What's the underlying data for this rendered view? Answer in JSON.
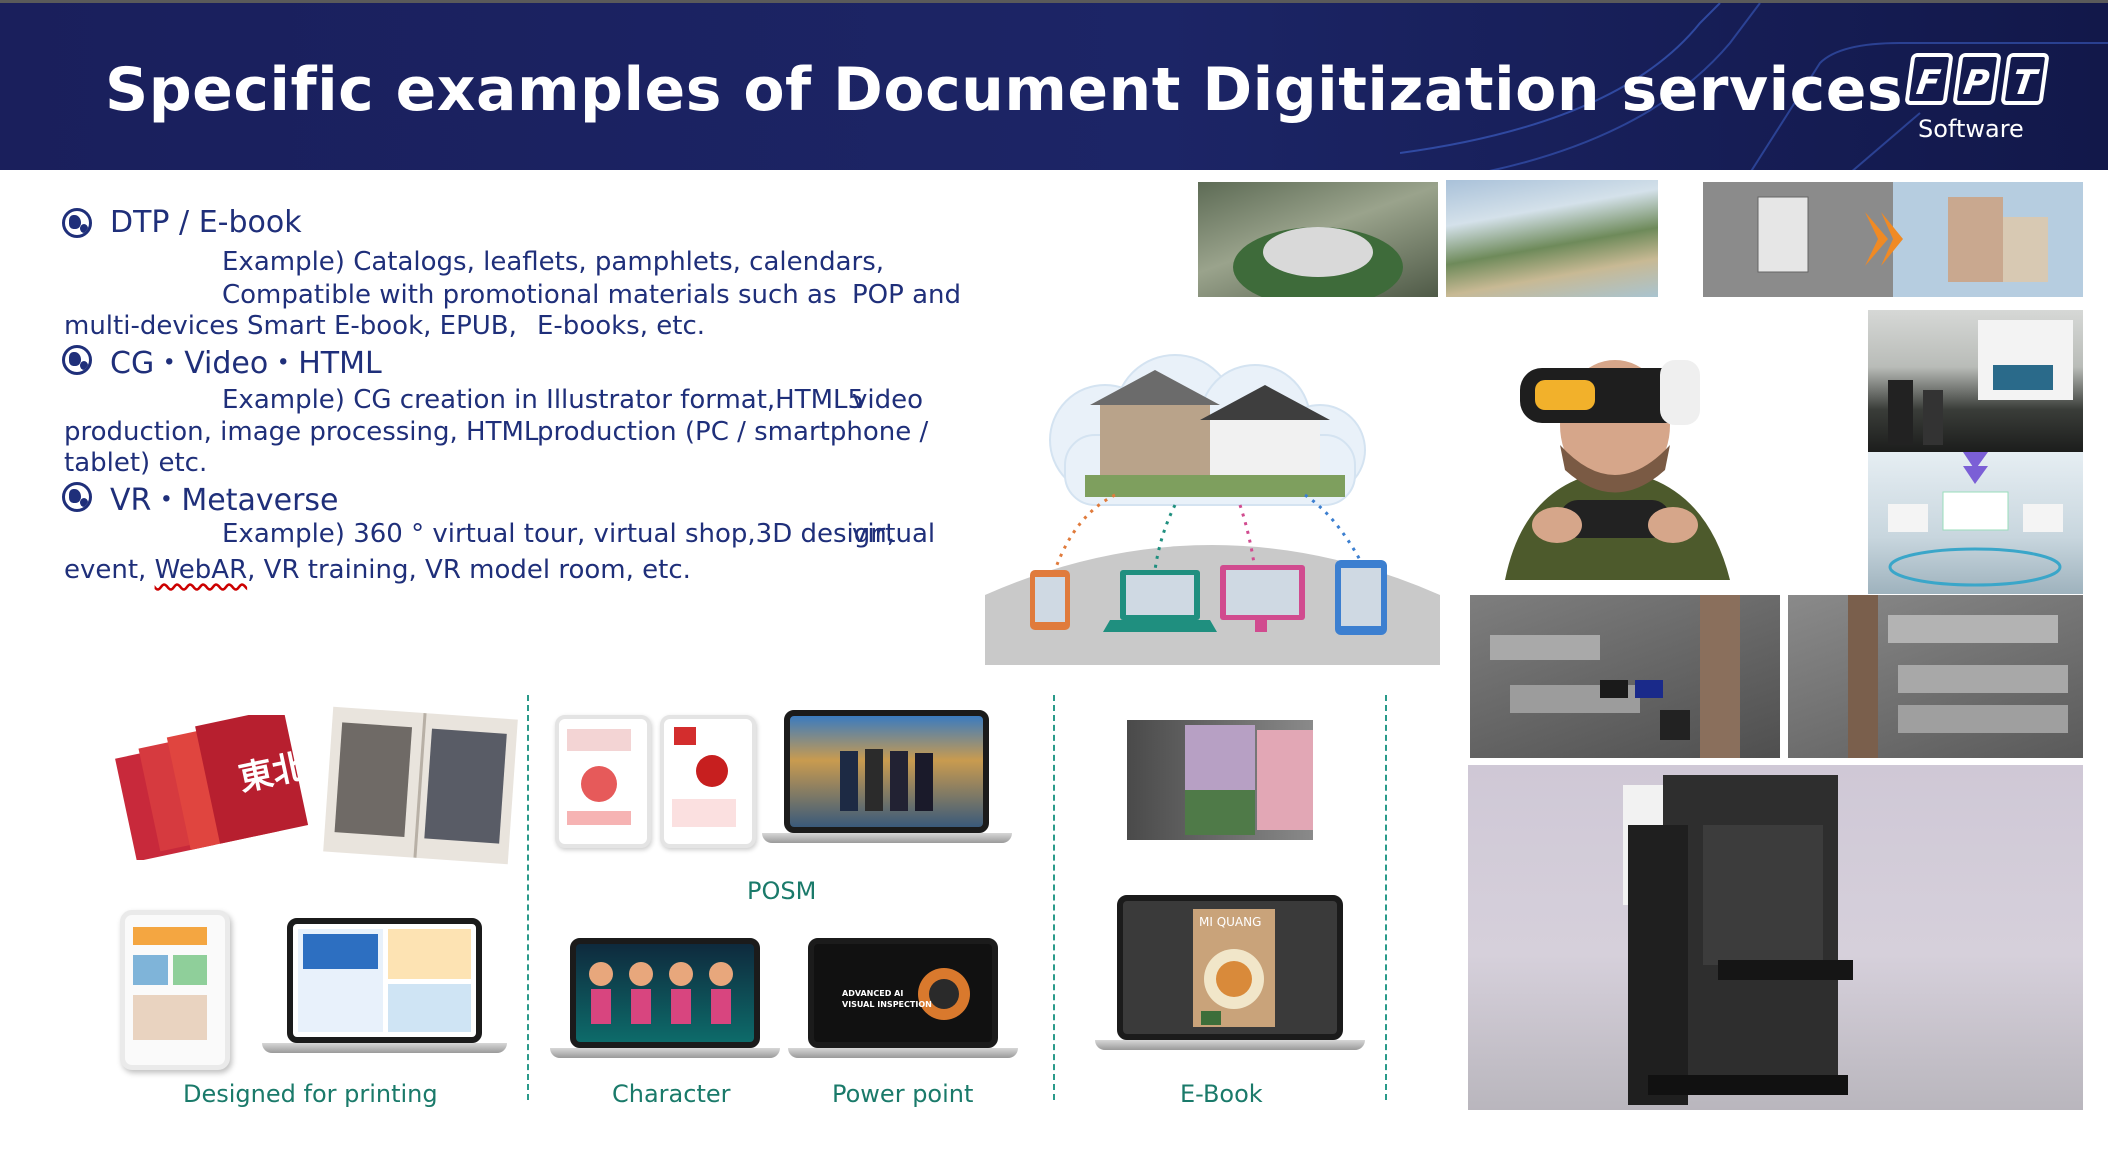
{
  "header": {
    "title": "Specific examples of Document Digitization services",
    "logo_text": "FPT",
    "logo_sub": "Software"
  },
  "sections": [
    {
      "heading": "DTP / E-book",
      "lines": [
        "Example) Catalogs, leaflets, pamphlets, calendars,",
        "Compatible with promotional materials such as",
        "POP and",
        "multi-devices Smart E-book, EPUB,",
        "E-books, etc."
      ]
    },
    {
      "heading": "CG・Video・HTML",
      "lines": [
        "Example) CG creation in Illustrator format,HTML5",
        "video",
        "production, image processing, HTML",
        "production (PC / smartphone /",
        "tablet) etc."
      ]
    },
    {
      "heading": "VR・Metaverse",
      "lines": [
        "Example) 360 ° virtual tour, virtual shop,3D design,",
        "virtual",
        "event,",
        "WebAR",
        ", VR training, VR  model room, etc."
      ]
    }
  ],
  "labels": {
    "posm": "POSM",
    "designed_for_printing": "Designed for printing",
    "character": "Character",
    "power_point": "Power point",
    "ebook": "E-Book"
  },
  "screen_text": {
    "ai_slide": "ADVANCED AI VISUAL INSPECTION",
    "ebook_cover": "MI QUANG",
    "magazine_cover": "東北"
  },
  "colors": {
    "header_bg": "#1c2566",
    "body_text": "#1f2f7a",
    "label_teal": "#1a7a6a"
  }
}
